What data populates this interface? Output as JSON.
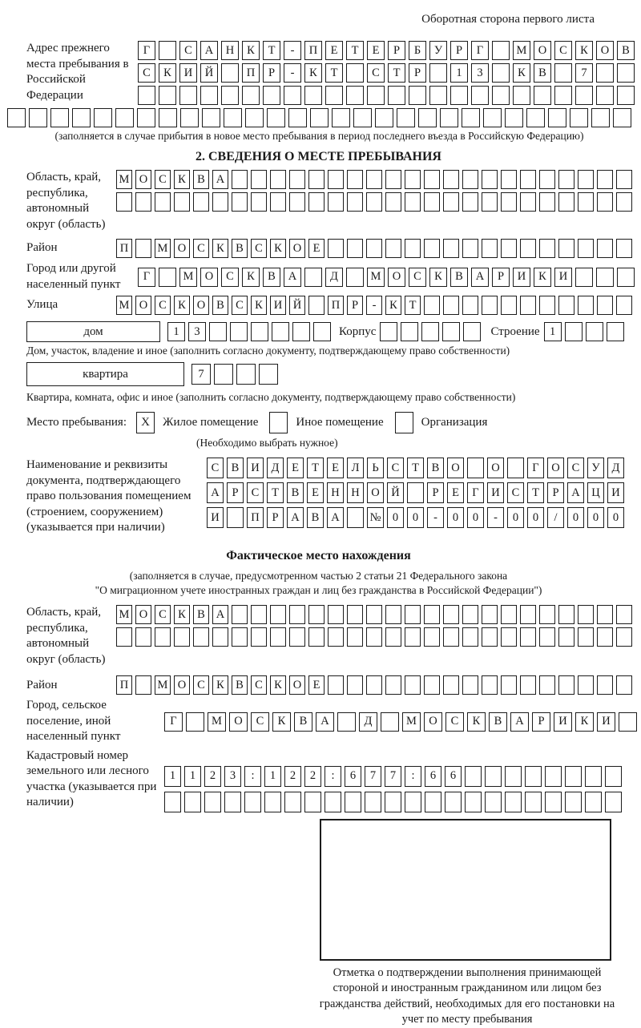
{
  "page": {
    "note": "Оборотная сторона первого листа"
  },
  "prev_address": {
    "label": "Адрес прежнего места пребывания в Российской Федерации",
    "row1": {
      "text": "Г САНКТ-ПЕТЕРБУРГ МОСКОВ",
      "len": 24
    },
    "row2": {
      "text": "СКИЙ ПР-КТ СТР 13 КВ 7",
      "len": 24
    },
    "row3": {
      "text": "",
      "len": 24
    },
    "row4": {
      "text": "",
      "len": 29
    },
    "caption": "(заполняется в случае прибытия в новое место пребывания в период последнего въезда в Российскую Федерацию)"
  },
  "section2": {
    "title": "2. СВЕДЕНИЯ О МЕСТЕ ПРЕБЫВАНИЯ",
    "region": {
      "label": "Область, край, республика, автономный округ (область)",
      "row1": {
        "text": "МОСКВА",
        "len": 27
      },
      "row2": {
        "text": "",
        "len": 27
      }
    },
    "district": {
      "label": "Район",
      "row": {
        "text": "П МОСКВСКОЕ",
        "len": 27
      }
    },
    "city": {
      "label": "Город или другой населенный пункт",
      "row": {
        "text": "Г МОСКВА Д МОСКВАРИКИ",
        "len": 24
      }
    },
    "street": {
      "label": "Улица",
      "row": {
        "text": "МОСКОВСКИЙ ПР-КТ",
        "len": 27
      }
    },
    "house": {
      "label": "дом",
      "row": {
        "text": "13",
        "len": 8
      },
      "korpus_label": "Корпус",
      "korpus_row": {
        "text": "",
        "len": 5
      },
      "stroenie_label": "Строение",
      "stroenie_row": {
        "text": "1",
        "len": 4
      },
      "caption": "Дом, участок, владение и иное (заполнить согласно документу, подтверждающему право собственности)"
    },
    "apartment": {
      "label": "квартира",
      "row": {
        "text": "7",
        "len": 4
      },
      "caption": "Квартира, комната, офис и иное (заполнить согласно документу, подтверждающему право собственности)"
    },
    "stay": {
      "label": "Место пребывания:",
      "options": [
        {
          "label": "Жилое помещение",
          "mark": "X"
        },
        {
          "label": "Иное помещение",
          "mark": ""
        },
        {
          "label": "Организация",
          "mark": ""
        }
      ],
      "hint": "(Необходимо выбрать нужное)"
    },
    "document": {
      "label": "Наименование и реквизиты документа, подтверждающего право пользования помещением (строением, сооружением) (указывается при наличии)",
      "row1": {
        "text": "СВИДЕТЕЛЬСТВО О ГОСУД",
        "len": 21
      },
      "row2": {
        "text": "АРСТВЕННОЙ РЕГИСТРАЦИ",
        "len": 21
      },
      "row3": {
        "text": "И ПРАВА №00-00-00/000",
        "len": 21
      }
    }
  },
  "actual_location": {
    "title": "Фактическое место нахождения",
    "subtitle_line1": "(заполняется в случае, предусмотренном частью 2 статьи 21 Федерального закона",
    "subtitle_line2": "\"О миграционном учете иностранных граждан и лиц без гражданства в Российской Федерации\")",
    "region": {
      "label": "Область, край, республика, автономный округ (область)",
      "row1": {
        "text": "МОСКВА",
        "len": 27
      },
      "row2": {
        "text": "",
        "len": 27
      }
    },
    "district": {
      "label": "Район",
      "row": {
        "text": "П МОСКВСКОЕ",
        "len": 27
      }
    },
    "city": {
      "label": "Город, сельское поселение, иной населенный пункт",
      "row": {
        "text": "Г МОСКВА Д МОСКВАРИКИ",
        "len": 22
      }
    },
    "cadastral": {
      "label": "Кадастровый номер земельного или лесного участка (указывается при наличии)",
      "row1": {
        "text": "1123:122:677:66",
        "len": 23
      },
      "row2": {
        "text": "",
        "len": 23
      }
    }
  },
  "stamp": {
    "caption": "Отметка о подтверждении выполнения принимающей стороной и иностранным гражданином или лицом без гражданства действий, необходимых для его постановки на учет по месту пребывания"
  }
}
